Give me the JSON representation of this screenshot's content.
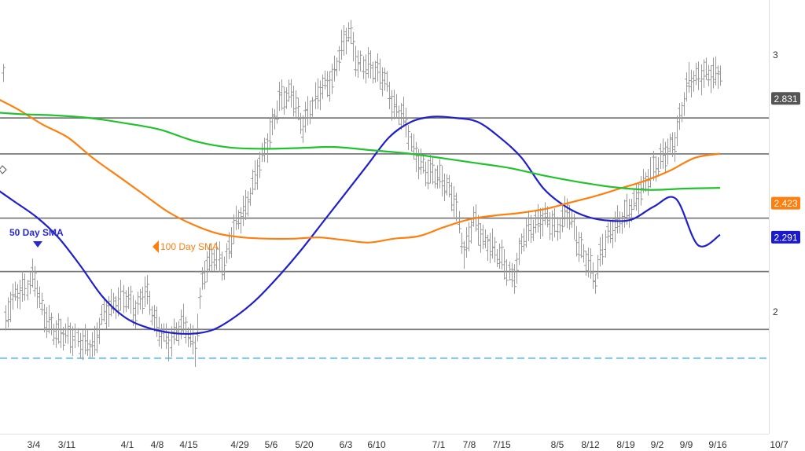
{
  "chart_data": {
    "type": "line",
    "x_ticks": [
      "3/4",
      "3/11",
      "4/1",
      "4/8",
      "4/15",
      "4/29",
      "5/6",
      "5/20",
      "6/3",
      "6/10",
      "7/1",
      "7/8",
      "7/15",
      "8/5",
      "8/12",
      "8/19",
      "9/2",
      "9/9",
      "9/16",
      "10/7"
    ],
    "y_ticks": [
      "3",
      "2"
    ],
    "ylim": [
      1.55,
      3.2
    ],
    "grid": false,
    "price_badges": [
      {
        "value": 2.831,
        "label": "2.831",
        "color": "#555555"
      },
      {
        "value": 2.423,
        "label": "2.423",
        "color": "#ff7f0e"
      },
      {
        "value": 2.291,
        "label": "2.291",
        "color": "#1a1acc"
      }
    ],
    "horizontal_levels": [
      2.755,
      2.615,
      2.365,
      2.157,
      1.932
    ],
    "dashed_level": 1.82,
    "annotations": [
      {
        "text": "50 Day SMA",
        "color": "#2a2ad0"
      },
      {
        "text": "100  Day SMA",
        "color": "#ff7f0e"
      }
    ],
    "series": [
      {
        "key": "sma50",
        "color": "#1f1fcc",
        "values": [
          2.49,
          2.43,
          2.37,
          2.29,
          2.18,
          2.06,
          1.98,
          1.94,
          1.92,
          1.915,
          1.93,
          1.98,
          2.05,
          2.14,
          2.24,
          2.35,
          2.46,
          2.57,
          2.68,
          2.74,
          2.76,
          2.755,
          2.74,
          2.68,
          2.6,
          2.48,
          2.41,
          2.37,
          2.355,
          2.36,
          2.41,
          2.44,
          2.26,
          2.3
        ]
      },
      {
        "key": "sma100",
        "color": "#ff7f0e",
        "values": [
          2.84,
          2.79,
          2.73,
          2.68,
          2.6,
          2.53,
          2.46,
          2.39,
          2.34,
          2.305,
          2.29,
          2.285,
          2.285,
          2.29,
          2.28,
          2.27,
          2.285,
          2.295,
          2.33,
          2.36,
          2.375,
          2.385,
          2.4,
          2.425,
          2.45,
          2.48,
          2.51,
          2.55,
          2.6,
          2.616
        ]
      },
      {
        "key": "sma200",
        "color": "#22c22e",
        "values": [
          2.78,
          2.77,
          2.765,
          2.755,
          2.735,
          2.71,
          2.665,
          2.64,
          2.635,
          2.638,
          2.642,
          2.63,
          2.618,
          2.6,
          2.58,
          2.56,
          2.53,
          2.505,
          2.485,
          2.475,
          2.48,
          2.483
        ]
      }
    ]
  }
}
